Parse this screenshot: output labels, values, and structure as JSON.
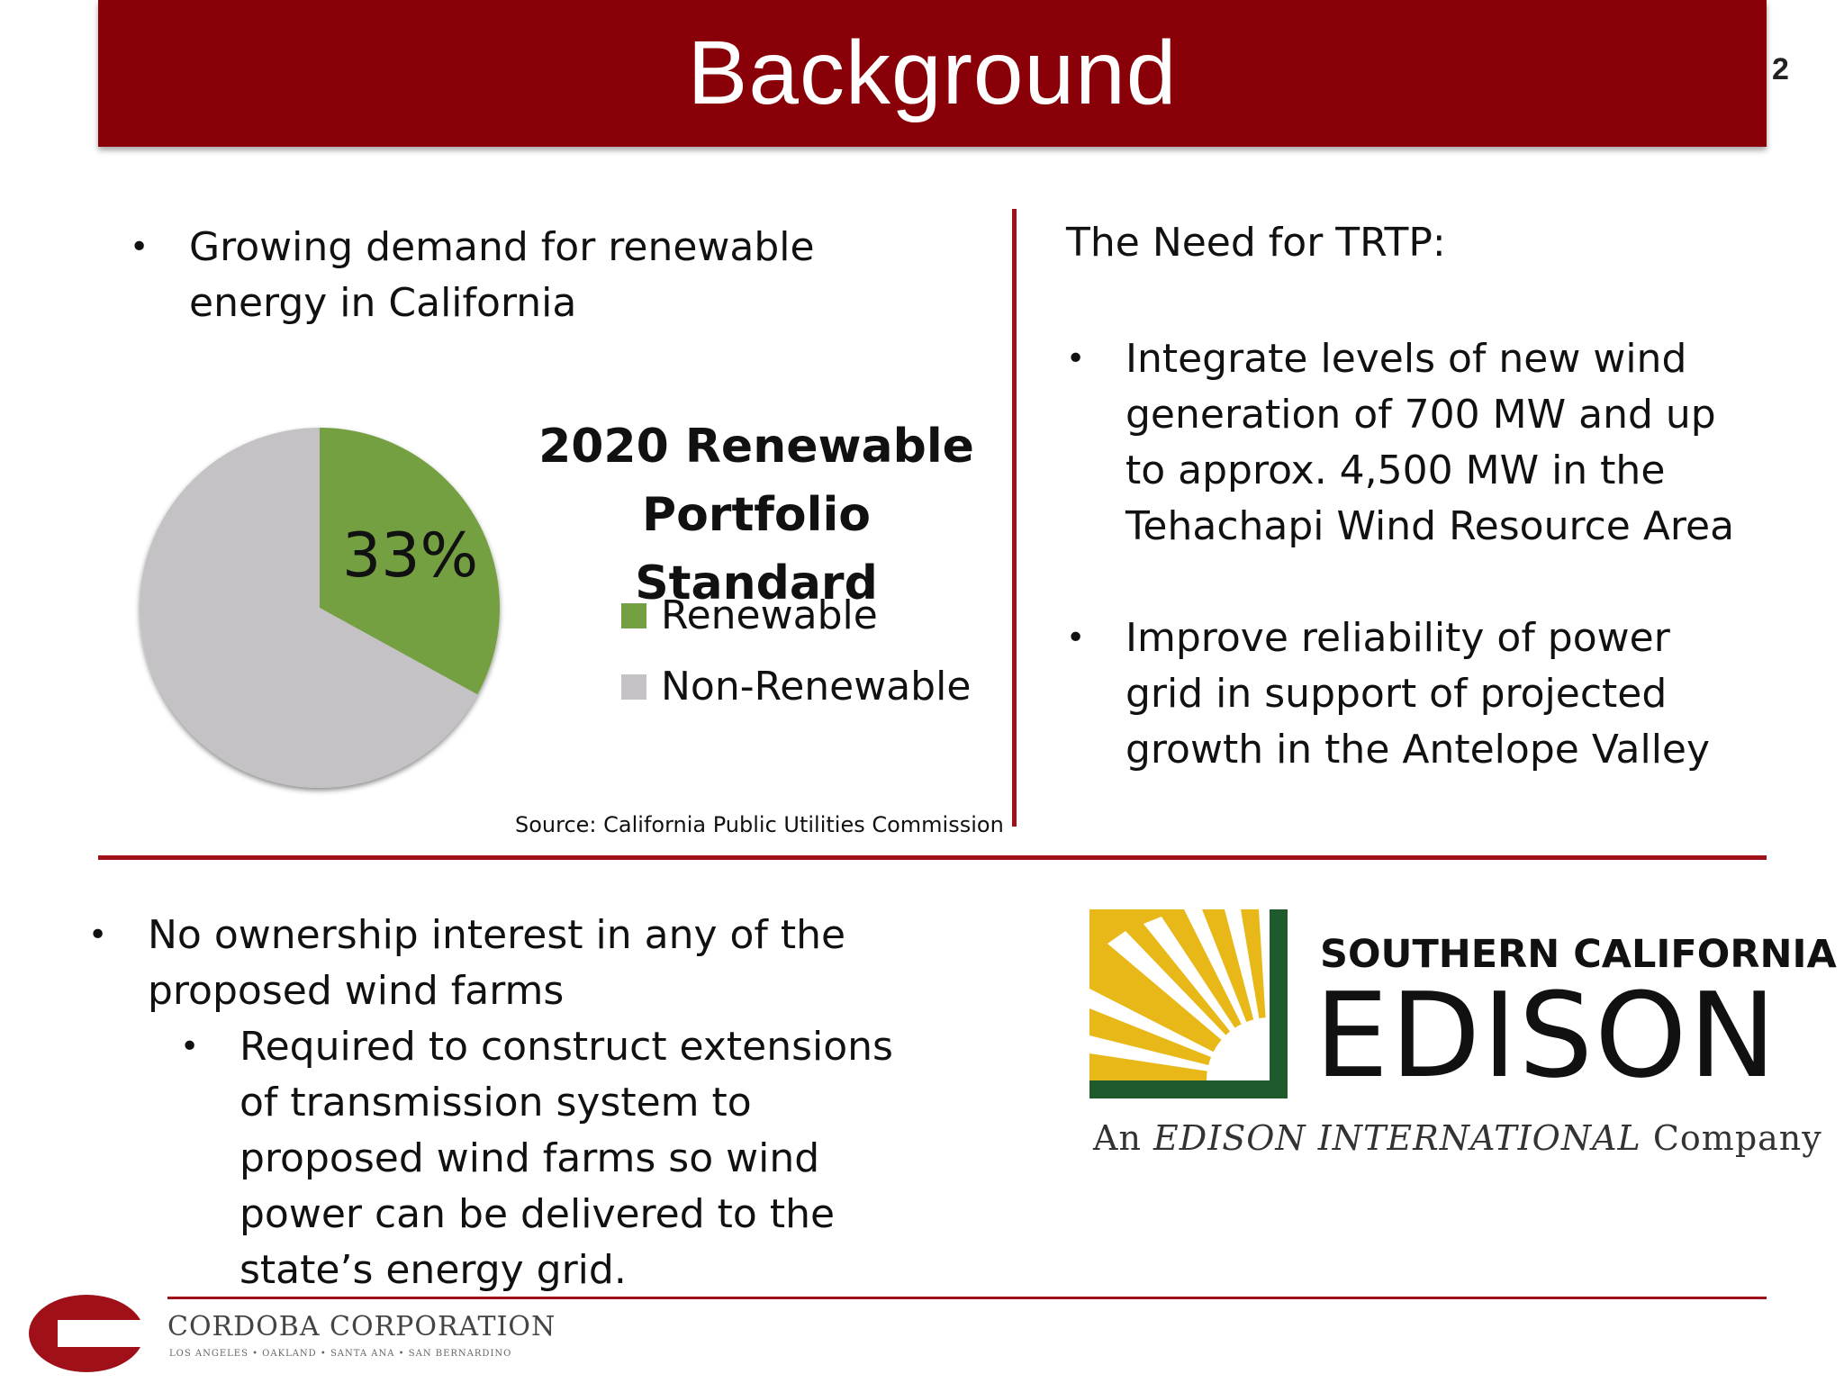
{
  "slide": {
    "title": "Background",
    "page_number": "2"
  },
  "left_top": {
    "bullet": "Growing demand for renewable energy in California"
  },
  "chart": {
    "title_line1": "2020 Renewable",
    "title_line2": "Portfolio Standard",
    "percent_label": "33%",
    "source": "Source: California Public Utilities Commission"
  },
  "chart_data": {
    "type": "pie",
    "title": "2020 Renewable Portfolio Standard",
    "categories": [
      "Renewable",
      "Non-Renewable"
    ],
    "values": [
      33,
      67
    ],
    "colors": [
      "#75a042",
      "#c4c2c4"
    ],
    "data_labels": [
      "33%",
      ""
    ],
    "legend_placement": "right"
  },
  "right_top": {
    "heading": "The Need for TRTP:",
    "bullets": [
      "Integrate levels of new wind generation of 700 MW and up to approx. 4,500 MW in the Tehachapi Wind Resource Area",
      "Improve reliability of power grid in support of projected growth in the Antelope Valley"
    ]
  },
  "bottom_left": {
    "bullet": "No ownership interest in any of the proposed wind farms",
    "sub_bullet": "Required to construct extensions of transmission system to proposed wind farms so wind power can be delivered to the state’s energy grid."
  },
  "sce_logo": {
    "line1": "SOUTHERN CALIFORNIA",
    "line2": "EDISON",
    "line3_prefix": "An ",
    "line3_italic": "EDISON INTERNATIONAL",
    "line3_suffix": " Company",
    "colors": {
      "yellow": "#e8b818",
      "green": "#1f5a2c"
    }
  },
  "footer": {
    "company": "CORDOBA CORPORATION",
    "locations": "LOS ANGELES • OAKLAND • SANTA ANA • SAN BERNARDINO",
    "brand_color": "#a01018"
  }
}
